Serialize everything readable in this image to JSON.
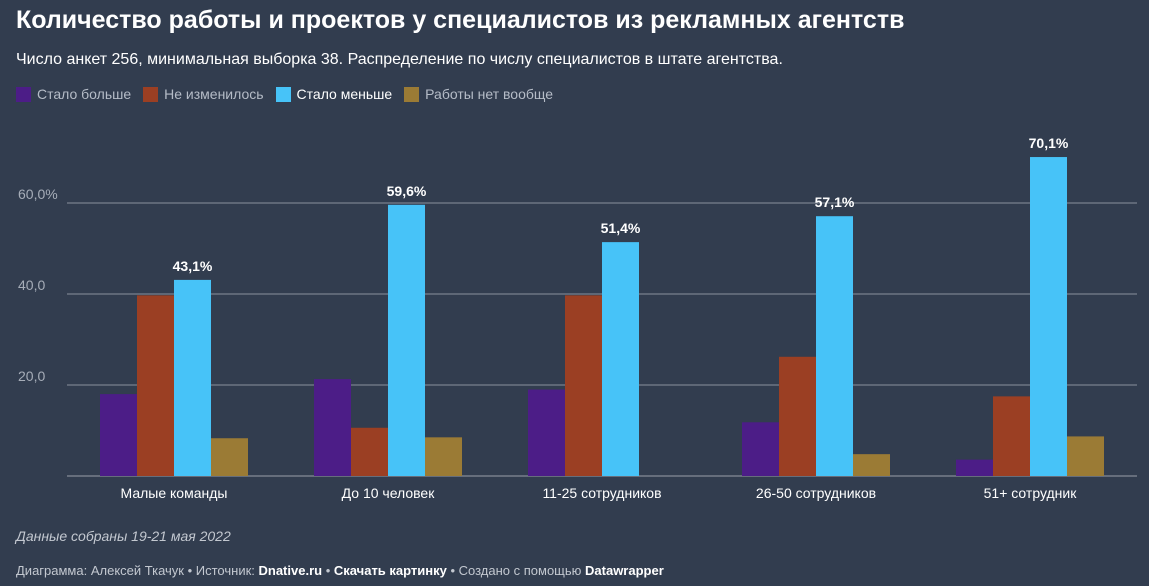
{
  "title": "Количество работы и проектов у специалистов из рекламных агентств",
  "subtitle": "Число анкет 256, минимальная выборка 38. Распределение по числу специалистов в штате агентства.",
  "legend": [
    {
      "label": "Стало больше",
      "color": "#4c1d87"
    },
    {
      "label": "Не изменилось",
      "color": "#9b3f23"
    },
    {
      "label": "Стало меньше",
      "color": "#47c3f8"
    },
    {
      "label": "Работы нет вообще",
      "color": "#9b7b35"
    }
  ],
  "chart_data": {
    "type": "bar",
    "categories": [
      "Малые команды",
      "До 10 человек",
      "11-25 сотрудников",
      "26-50 сотрудников",
      "51+ сотрудник"
    ],
    "series": [
      {
        "name": "Стало больше",
        "color": "#4c1d87",
        "values": [
          18.0,
          21.3,
          19.0,
          11.8,
          3.6
        ]
      },
      {
        "name": "Не изменилось",
        "color": "#9b3f23",
        "values": [
          39.7,
          10.6,
          39.7,
          26.2,
          17.5
        ]
      },
      {
        "name": "Стало меньше",
        "color": "#47c3f8",
        "values": [
          43.1,
          59.6,
          51.4,
          57.1,
          70.1
        ],
        "value_labels": [
          "43,1%",
          "59,6%",
          "51,4%",
          "57,1%",
          "70,1%"
        ]
      },
      {
        "name": "Работы нет вообще",
        "color": "#9b7b35",
        "values": [
          8.3,
          8.5,
          0,
          4.8,
          8.7
        ]
      }
    ],
    "yticks": [
      {
        "value": 20,
        "label": "20,0"
      },
      {
        "value": 40,
        "label": "40,0"
      },
      {
        "value": 60,
        "label": "60,0%"
      }
    ],
    "ylim": [
      0,
      72
    ],
    "grid": true,
    "legend_position": "top-left"
  },
  "note": "Данные собраны 19-21 мая 2022",
  "footer": {
    "prefix": "Диаграмма: Алексей Ткачук • Источник: ",
    "source": "Dnative.ru",
    "sep1": " • ",
    "download": "Скачать картинку",
    "sep2": " • Создано с помощью ",
    "tool": "Datawrapper"
  }
}
